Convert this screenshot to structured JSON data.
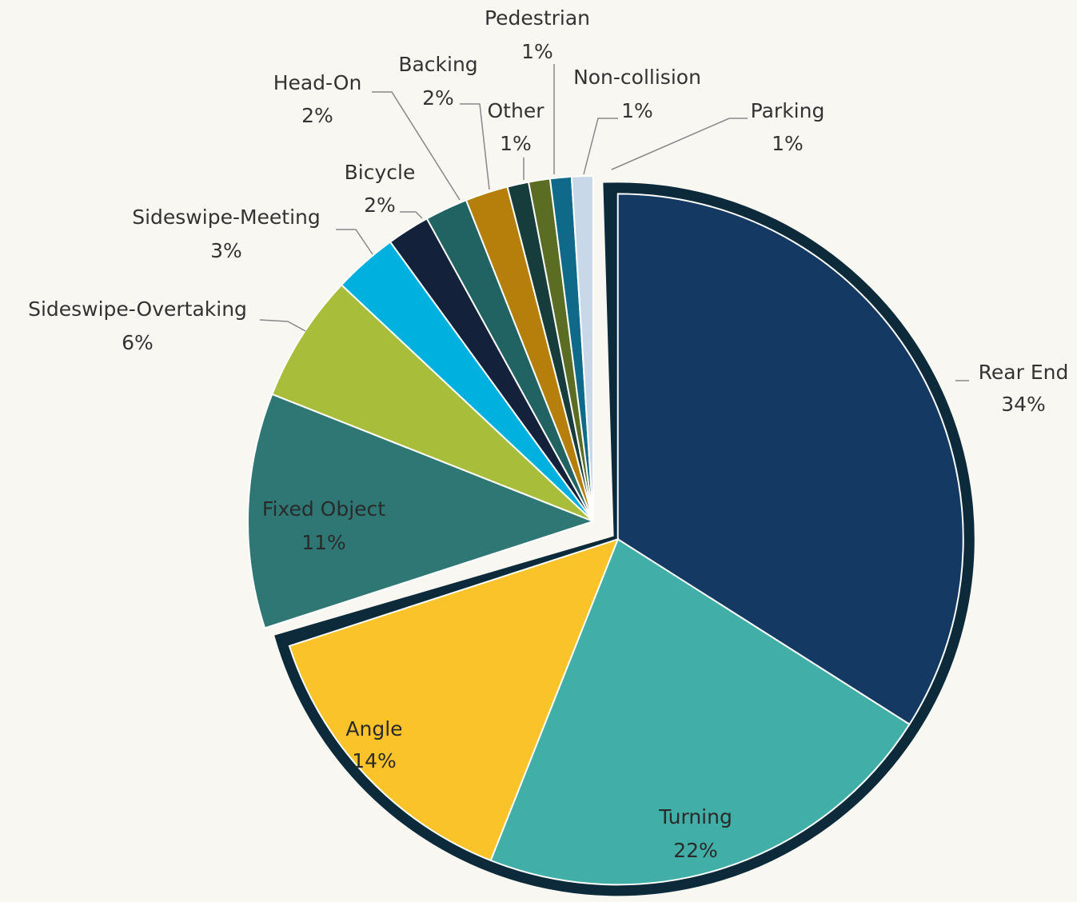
{
  "chart_data": {
    "type": "pie",
    "categories": [
      "Rear End",
      "Turning",
      "Angle",
      "Fixed Object",
      "Sideswipe-Overtaking",
      "Sideswipe-Meeting",
      "Bicycle",
      "Head-On",
      "Backing",
      "Other",
      "Pedestrian",
      "Non-collision",
      "Parking"
    ],
    "values": [
      34,
      22,
      14,
      11,
      6,
      3,
      2,
      2,
      2,
      1,
      1,
      1,
      1
    ],
    "value_labels": [
      "34%",
      "22%",
      "14%",
      "11%",
      "6%",
      "3%",
      "2%",
      "2%",
      "2%",
      "1%",
      "1%",
      "1%",
      "1%"
    ],
    "colors": [
      "#143a63",
      "#41aea8",
      "#fbc32a",
      "#2e7775",
      "#a8be3a",
      "#00b0de",
      "#13223a",
      "#216363",
      "#b67e0a",
      "#173c3c",
      "#5a6d22",
      "#0f6a8a",
      "#c8d8e8"
    ]
  }
}
